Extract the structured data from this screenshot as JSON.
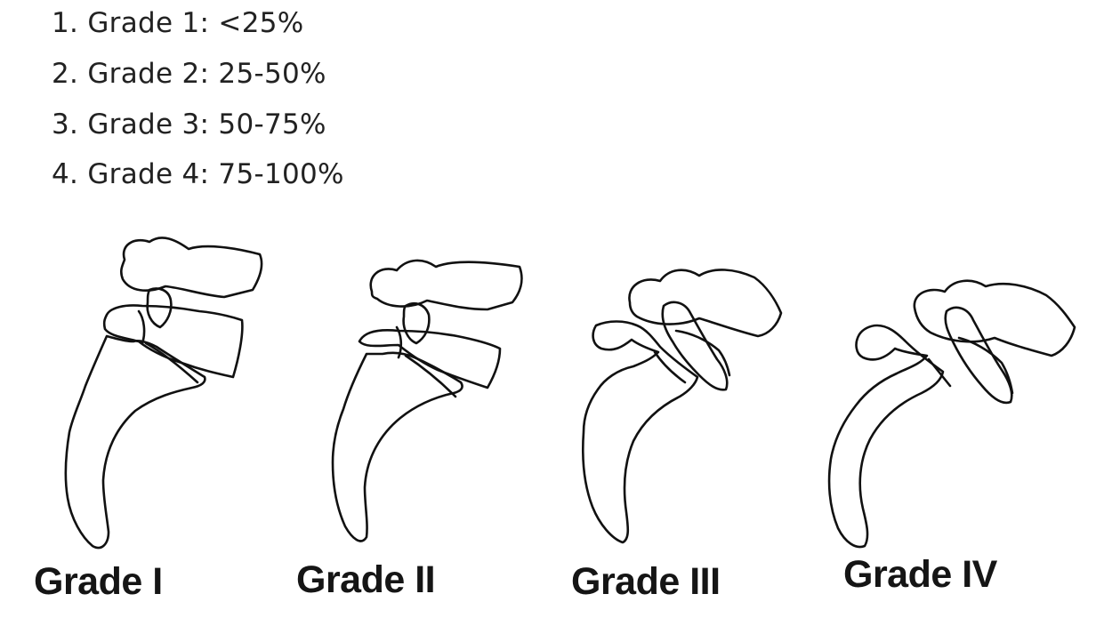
{
  "list": {
    "items": [
      "1. Grade 1: <25%",
      "2. Grade 2: 25-50%",
      "3. Grade 3: 50-75%",
      "4. Grade 4: 75-100%"
    ]
  },
  "figure": {
    "captions": [
      "Grade I",
      "Grade II",
      "Grade III",
      "Grade IV"
    ]
  },
  "colors": {
    "text": "#222222",
    "outline": "#111111",
    "background": "#ffffff"
  }
}
